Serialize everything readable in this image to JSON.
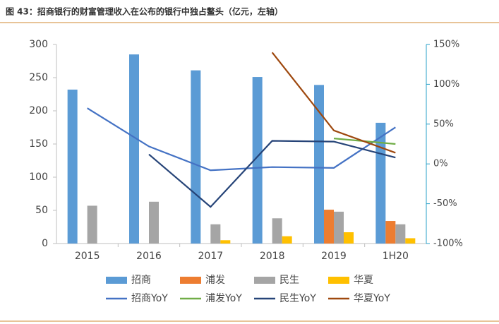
{
  "chart_data": {
    "type": "bar-line",
    "title": "图 43：招商银行的财富管理收入在公布的银行中独占鳌头（亿元，左轴）",
    "categories": [
      "2015",
      "2016",
      "2017",
      "2018",
      "2019",
      "1H20"
    ],
    "series": [
      {
        "name": "招商",
        "type": "bar",
        "color": "#5b9bd5",
        "values": [
          232,
          285,
          261,
          251,
          239,
          182
        ]
      },
      {
        "name": "浦发",
        "type": "bar",
        "color": "#ed7d31",
        "values": [
          null,
          null,
          null,
          null,
          51,
          34
        ]
      },
      {
        "name": "民生",
        "type": "bar",
        "color": "#a5a5a5",
        "values": [
          57,
          63,
          29,
          38,
          48,
          29
        ]
      },
      {
        "name": "华夏",
        "type": "bar",
        "color": "#ffc000",
        "values": [
          null,
          null,
          5,
          11,
          17,
          8
        ]
      },
      {
        "name": "招商YoY",
        "type": "line",
        "axis": "y2",
        "color": "#4472c4",
        "values": [
          70,
          22,
          -8,
          -4,
          -5,
          46
        ]
      },
      {
        "name": "浦发YoY",
        "type": "line",
        "axis": "y2",
        "color": "#70ad47",
        "values": [
          null,
          null,
          null,
          null,
          32,
          25
        ]
      },
      {
        "name": "民生YoY",
        "type": "line",
        "axis": "y2",
        "color": "#264478",
        "values": [
          null,
          12,
          -54,
          29,
          28,
          8
        ]
      },
      {
        "name": "华夏YoY",
        "type": "line",
        "axis": "y2",
        "color": "#9e480e",
        "values": [
          null,
          null,
          null,
          140,
          42,
          14
        ]
      }
    ],
    "ylim": [
      0,
      300
    ],
    "yticks": [
      0,
      50,
      100,
      150,
      200,
      250,
      300
    ],
    "y2lim": [
      -100,
      150
    ],
    "y2ticks": [
      {
        "value": -100,
        "label": "-100%"
      },
      {
        "value": -50,
        "label": "-50%"
      },
      {
        "value": 0,
        "label": "0%"
      },
      {
        "value": 50,
        "label": "50%"
      },
      {
        "value": 100,
        "label": "100%"
      },
      {
        "value": 150,
        "label": "150%"
      }
    ],
    "grid": false,
    "legend": "bottom"
  }
}
